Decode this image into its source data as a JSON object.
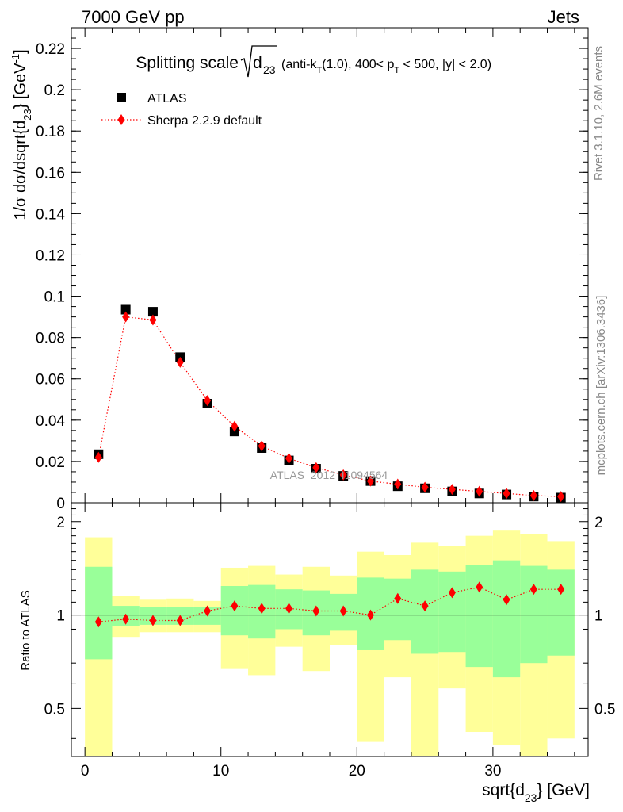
{
  "header": {
    "left": "7000 GeV pp",
    "right": "Jets"
  },
  "side_labels": {
    "rivet": "Rivet 3.1.10,  2.6M events",
    "mcplots": "mcplots.cern.ch [arXiv:1306.3436]"
  },
  "watermark": "ATLAS_2012_I1094564",
  "chart_data": [
    {
      "type": "scatter",
      "panel": "main",
      "title": {
        "prefix": "Splitting scale",
        "var": "d",
        "var_sub": "23",
        "cut_open": "(anti-k",
        "cut_k_sub": "T",
        "cut_mid": "(1.0), 400< p",
        "cut_p_sub": "T",
        "cut_end": " < 500, |y| < 2.0)"
      },
      "ylabel": {
        "a": "1/σ dσ/dsqrt{d",
        "sub": "23",
        "b": "} [GeV",
        "sup": "-1",
        "c": "]"
      },
      "xlim": [
        -1,
        37
      ],
      "ylim": [
        0,
        0.23
      ],
      "yticks": [
        "0",
        "0.02",
        "0.04",
        "0.06",
        "0.08",
        "0.1",
        "0.12",
        "0.14",
        "0.16",
        "0.18",
        "0.2",
        "0.22"
      ],
      "legend": {
        "position": "top-left"
      },
      "series": [
        {
          "name": "ATLAS",
          "marker": "square",
          "color": "#000000",
          "x": [
            1,
            3,
            5,
            7,
            9,
            11,
            13,
            15,
            17,
            19,
            21,
            23,
            25,
            27,
            29,
            31,
            33,
            35
          ],
          "y": [
            0.0235,
            0.0935,
            0.0925,
            0.0705,
            0.048,
            0.0345,
            0.0265,
            0.0205,
            0.0165,
            0.013,
            0.0105,
            0.008,
            0.007,
            0.0055,
            0.0045,
            0.004,
            0.003,
            0.0025
          ]
        },
        {
          "name": "Sherpa 2.2.9 default",
          "marker": "diamond",
          "line": "dotted",
          "color": "#ff0000",
          "x": [
            1,
            3,
            5,
            7,
            9,
            11,
            13,
            15,
            17,
            19,
            21,
            23,
            25,
            27,
            29,
            31,
            33,
            35
          ],
          "y": [
            0.022,
            0.09,
            0.0885,
            0.068,
            0.0495,
            0.037,
            0.0275,
            0.0215,
            0.017,
            0.0135,
            0.0105,
            0.009,
            0.0075,
            0.0065,
            0.0055,
            0.0045,
            0.0035,
            0.003
          ]
        }
      ]
    },
    {
      "type": "scatter",
      "panel": "ratio",
      "ylabel": "Ratio to ATLAS",
      "xlabel": {
        "a": "sqrt{d",
        "sub": "23",
        "b": "} [GeV]"
      },
      "xlim": [
        -1,
        37
      ],
      "ylim": [
        0.35,
        2.3
      ],
      "xticks": [
        "0",
        "10",
        "20",
        "30"
      ],
      "yticks": [
        "0.5",
        "1",
        "2"
      ],
      "bins": [
        0,
        2,
        4,
        6,
        8,
        10,
        12,
        14,
        16,
        18,
        20,
        22,
        24,
        26,
        28,
        30,
        32,
        34,
        36
      ],
      "band_inner": {
        "color": "#99ff99",
        "lo": [
          0.72,
          0.92,
          0.93,
          0.93,
          0.93,
          0.86,
          0.84,
          0.9,
          0.86,
          0.89,
          0.77,
          0.83,
          0.75,
          0.76,
          0.68,
          0.63,
          0.7,
          0.74
        ],
        "hi": [
          1.43,
          1.07,
          1.06,
          1.06,
          1.06,
          1.24,
          1.25,
          1.21,
          1.2,
          1.17,
          1.32,
          1.31,
          1.4,
          1.38,
          1.45,
          1.5,
          1.44,
          1.4
        ]
      },
      "band_outer": {
        "color": "#ffff99",
        "lo": [
          0,
          0.85,
          0.88,
          0.88,
          0.88,
          0.67,
          0.64,
          0.79,
          0.66,
          0.8,
          0.39,
          0.63,
          0.35,
          0.58,
          0.42,
          0.38,
          0.35,
          0.4
        ],
        "hi": [
          1.78,
          1.15,
          1.12,
          1.13,
          1.11,
          1.42,
          1.44,
          1.35,
          1.43,
          1.34,
          1.6,
          1.56,
          1.71,
          1.67,
          1.8,
          1.87,
          1.82,
          1.73
        ]
      },
      "series": [
        {
          "name": "Sherpa 2.2.9 default",
          "color": "#ff0000",
          "x": [
            1,
            3,
            5,
            7,
            9,
            11,
            13,
            15,
            17,
            19,
            21,
            23,
            25,
            27,
            29,
            31,
            33,
            35
          ],
          "y": [
            0.95,
            0.97,
            0.96,
            0.96,
            1.03,
            1.07,
            1.05,
            1.05,
            1.03,
            1.03,
            1.0,
            1.13,
            1.07,
            1.18,
            1.23,
            1.12,
            1.21,
            1.21
          ]
        }
      ]
    }
  ]
}
